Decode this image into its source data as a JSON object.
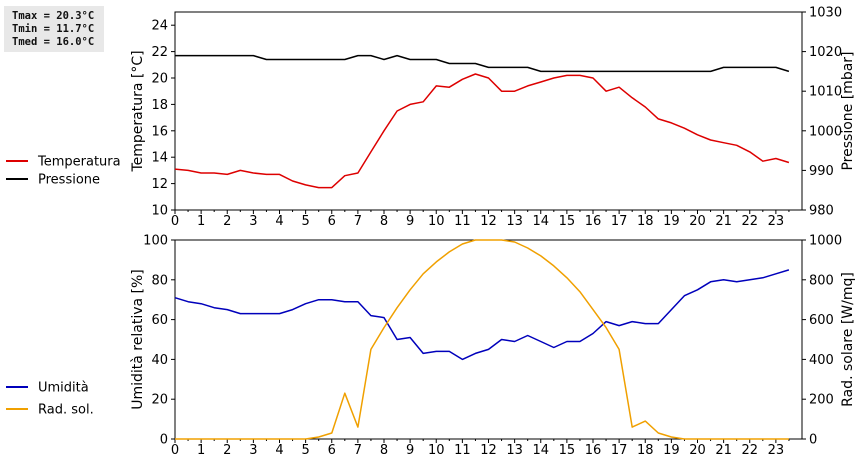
{
  "stats": {
    "tmax": "Tmax = 20.3°C",
    "tmin": "Tmin = 11.7°C",
    "tmed": "Tmed = 16.0°C"
  },
  "colors": {
    "temperature": "#dd0000",
    "pressure": "#000000",
    "humidity": "#0000bb",
    "radiation": "#f0a000"
  },
  "chart_data": [
    {
      "type": "line",
      "xlim": [
        0,
        24
      ],
      "x_ticks": [
        "0",
        "1",
        "2",
        "3",
        "4",
        "5",
        "6",
        "7",
        "8",
        "9",
        "10",
        "11",
        "12",
        "13",
        "14",
        "15",
        "16",
        "17",
        "18",
        "19",
        "20",
        "21",
        "22",
        "23"
      ],
      "y_left": {
        "label": "Temperatura [°C]",
        "lim": [
          10,
          25
        ],
        "ticks": [
          "10",
          "12",
          "14",
          "16",
          "18",
          "20",
          "22",
          "24"
        ]
      },
      "y_right": {
        "label": "Pressione [mbar]",
        "lim": [
          980,
          1030
        ],
        "ticks": [
          "980",
          "990",
          "1000",
          "1010",
          "1020",
          "1030"
        ]
      },
      "grid": false,
      "legend_placement": "left",
      "series": [
        {
          "name": "Temperatura",
          "axis": "left",
          "x": [
            0,
            0.5,
            1,
            1.5,
            2,
            2.5,
            3,
            3.5,
            4,
            4.5,
            5,
            5.5,
            6,
            6.5,
            7,
            7.5,
            8,
            8.5,
            9,
            9.5,
            10,
            10.5,
            11,
            11.5,
            12,
            12.5,
            13,
            13.5,
            14,
            14.5,
            15,
            15.5,
            16,
            16.5,
            17,
            17.5,
            18,
            18.5,
            19,
            19.5,
            20,
            20.5,
            21,
            21.5,
            22,
            22.5,
            23,
            23.5
          ],
          "y": [
            13.1,
            13.0,
            12.8,
            12.8,
            12.7,
            13.0,
            12.8,
            12.7,
            12.7,
            12.2,
            11.9,
            11.7,
            11.7,
            12.6,
            12.8,
            14.4,
            16.0,
            17.5,
            18.0,
            18.2,
            19.4,
            19.3,
            19.9,
            20.3,
            20.0,
            19.0,
            19.0,
            19.4,
            19.7,
            20.0,
            20.2,
            20.2,
            20.0,
            19.0,
            19.3,
            18.5,
            17.8,
            16.9,
            16.6,
            16.2,
            15.7,
            15.3,
            15.1,
            14.9,
            14.4,
            13.7,
            13.9,
            13.6
          ]
        },
        {
          "name": "Pressione",
          "axis": "right",
          "x": [
            0,
            0.5,
            1,
            1.5,
            2,
            2.5,
            3,
            3.5,
            4,
            4.5,
            5,
            5.5,
            6,
            6.5,
            7,
            7.5,
            8,
            8.5,
            9,
            9.5,
            10,
            10.5,
            11,
            11.5,
            12,
            12.5,
            13,
            13.5,
            14,
            14.5,
            15,
            15.5,
            16,
            16.5,
            17,
            17.5,
            18,
            18.5,
            19,
            19.5,
            20,
            20.5,
            21,
            21.5,
            22,
            22.5,
            23,
            23.5
          ],
          "y": [
            1019,
            1019,
            1019,
            1019,
            1019,
            1019,
            1019,
            1018,
            1018,
            1018,
            1018,
            1018,
            1018,
            1018,
            1019,
            1019,
            1018,
            1019,
            1018,
            1018,
            1018,
            1017,
            1017,
            1017,
            1016,
            1016,
            1016,
            1016,
            1015,
            1015,
            1015,
            1015,
            1015,
            1015,
            1015,
            1015,
            1015,
            1015,
            1015,
            1015,
            1015,
            1015,
            1016,
            1016,
            1016,
            1016,
            1016,
            1015
          ]
        }
      ]
    },
    {
      "type": "line",
      "xlim": [
        0,
        24
      ],
      "x_ticks": [
        "0",
        "1",
        "2",
        "3",
        "4",
        "5",
        "6",
        "7",
        "8",
        "9",
        "10",
        "11",
        "12",
        "13",
        "14",
        "15",
        "16",
        "17",
        "18",
        "19",
        "20",
        "21",
        "22",
        "23"
      ],
      "y_left": {
        "label": "Umidità relativa [%]",
        "lim": [
          0,
          100
        ],
        "ticks": [
          "0",
          "20",
          "40",
          "60",
          "80",
          "100"
        ]
      },
      "y_right": {
        "label": "Rad. solare [W/mq]",
        "lim": [
          0,
          1000
        ],
        "ticks": [
          "0",
          "200",
          "400",
          "600",
          "800",
          "1000"
        ]
      },
      "grid": false,
      "legend_placement": "left",
      "series": [
        {
          "name": "Umidità",
          "axis": "left",
          "x": [
            0,
            0.5,
            1,
            1.5,
            2,
            2.5,
            3,
            3.5,
            4,
            4.5,
            5,
            5.5,
            6,
            6.5,
            7,
            7.5,
            8,
            8.5,
            9,
            9.5,
            10,
            10.5,
            11,
            11.5,
            12,
            12.5,
            13,
            13.5,
            14,
            14.5,
            15,
            15.5,
            16,
            16.5,
            17,
            17.5,
            18,
            18.5,
            19,
            19.5,
            20,
            20.5,
            21,
            21.5,
            22,
            22.5,
            23,
            23.5
          ],
          "y": [
            71,
            69,
            68,
            66,
            65,
            63,
            63,
            63,
            63,
            65,
            68,
            70,
            70,
            69,
            69,
            62,
            61,
            50,
            51,
            43,
            44,
            44,
            40,
            43,
            45,
            50,
            49,
            52,
            49,
            46,
            49,
            49,
            53,
            59,
            57,
            59,
            58,
            58,
            65,
            72,
            75,
            79,
            80,
            79,
            80,
            81,
            83,
            85
          ]
        },
        {
          "name": "Rad. sol.",
          "axis": "right",
          "x": [
            0,
            0.5,
            1,
            1.5,
            2,
            2.5,
            3,
            3.5,
            4,
            4.5,
            5,
            5.5,
            6,
            6.5,
            7,
            7.5,
            8,
            8.5,
            9,
            9.5,
            10,
            10.5,
            11,
            11.5,
            12,
            12.5,
            13,
            13.5,
            14,
            14.5,
            15,
            15.5,
            16,
            16.5,
            17,
            17.5,
            18,
            18.5,
            19,
            19.5,
            20,
            20.5,
            21,
            21.5,
            22,
            22.5,
            23,
            23.5
          ],
          "y": [
            0,
            0,
            0,
            0,
            0,
            0,
            0,
            0,
            0,
            0,
            0,
            10,
            30,
            230,
            60,
            450,
            560,
            660,
            750,
            830,
            890,
            940,
            980,
            1000,
            1000,
            1000,
            990,
            960,
            920,
            870,
            810,
            740,
            650,
            560,
            450,
            60,
            90,
            30,
            10,
            0,
            0,
            0,
            0,
            0,
            0,
            0,
            0,
            0
          ]
        }
      ]
    }
  ]
}
